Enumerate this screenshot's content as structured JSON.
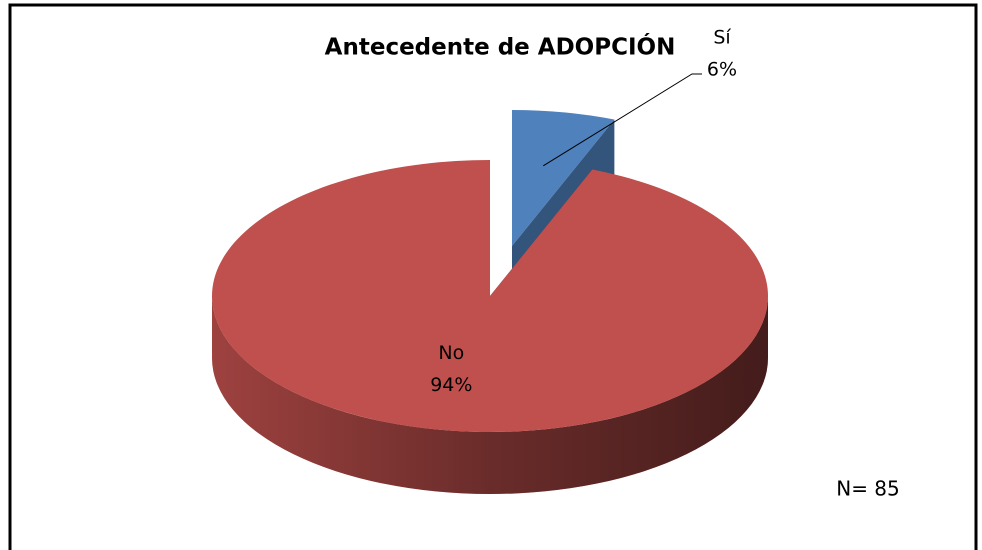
{
  "chart_data": {
    "type": "pie",
    "title": "Antecedente de ADOPCIÓN",
    "categories": [
      "Sí",
      "No"
    ],
    "values": [
      6,
      94
    ],
    "value_labels": [
      "6%",
      "94%"
    ],
    "colors": [
      "#4f81bd",
      "#c0504d"
    ],
    "exploded": [
      true,
      false
    ],
    "annotation": "N= 85"
  }
}
